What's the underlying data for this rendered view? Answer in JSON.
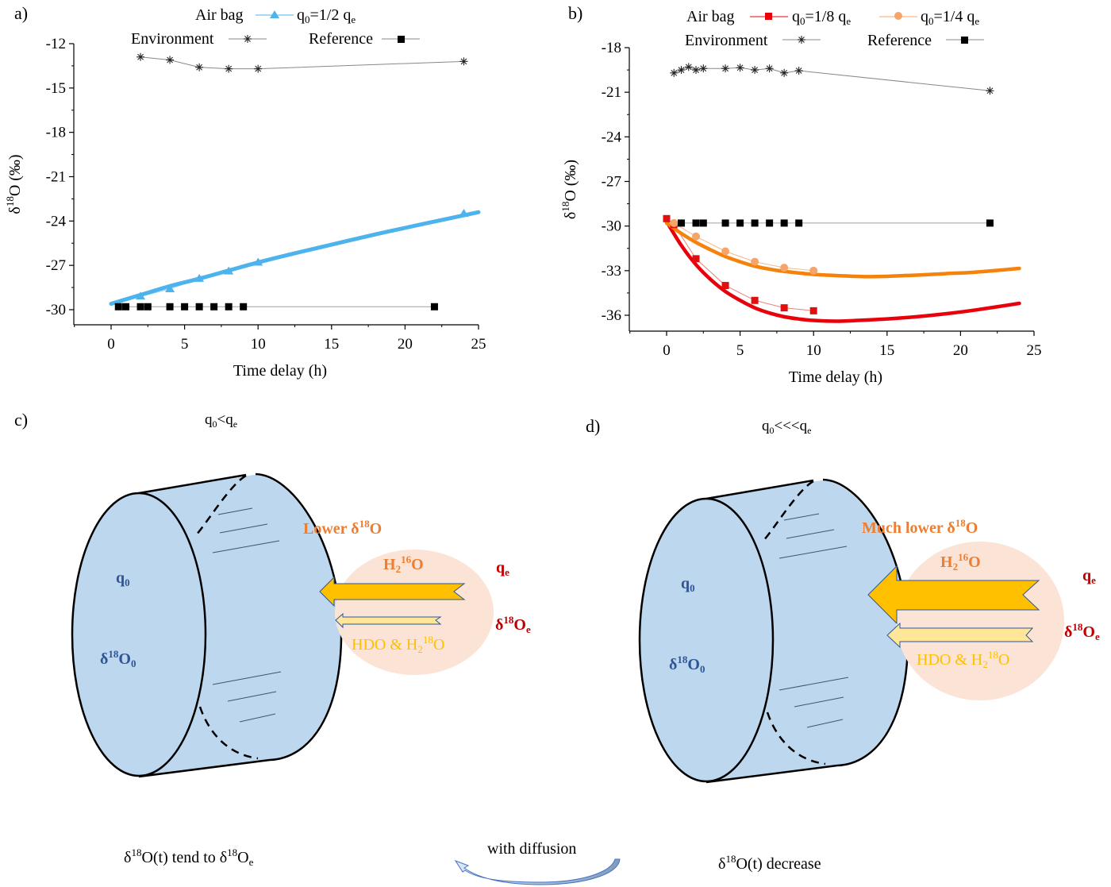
{
  "panels": {
    "a": {
      "label": "a)"
    },
    "b": {
      "label": "b)"
    },
    "c": {
      "label": "c)",
      "condition": "q0<qe",
      "inflow_label": "Lower δ18O",
      "h2o16": "H2 16O",
      "hdo": "HDO & H2 18O",
      "q0": "q0",
      "d18o0": "δ18O0",
      "qe": "qe",
      "d18oe": "δ18Oe",
      "caption": "δ18O(t) tend to δ18Oe"
    },
    "d": {
      "label": "d)",
      "condition": "q0<<<qe",
      "inflow_label": "Much lower δ18O",
      "h2o16": "H2 16O",
      "hdo": "HDO & H2 18O",
      "q0": "q0",
      "d18o0": "δ18O0",
      "qe": "qe",
      "d18oe": "δ18Oe",
      "caption": "δ18O(t)  decrease"
    },
    "transition": {
      "label": "with diffusion"
    }
  },
  "text": {
    "air_bag": "Air bag",
    "environment": "Environment",
    "reference": "Reference",
    "q_half": "q0=1/2 qe",
    "q_eighth": "q0=1/8 qe",
    "q_quarter": "q0=1/4 qe",
    "xlabel": "Time delay (h)",
    "ylabel": "δ18O (‰)"
  },
  "colors": {
    "airbag_blue": "#4db3ec",
    "red": "#e8000b",
    "orange": "#f5820a",
    "orange_light": "#f7a46a",
    "grey_line": "#a0a0a0",
    "cylinder_fill": "#bdd7ee",
    "bubble_fill": "#fbe4d5",
    "arrow_main": "#ffc000",
    "arrow_minor": "#ffe699",
    "text_blue": "#2f5597",
    "text_orange": "#ed7d31",
    "text_red": "#c00000",
    "text_gold": "#ffc000"
  },
  "chart_data": [
    {
      "type": "line",
      "panel": "a",
      "xlabel": "Time delay (h)",
      "ylabel": "δ18O (‰)",
      "xlim": [
        -2.5,
        25
      ],
      "ylim": [
        -31.2,
        -12
      ],
      "xticks": [
        0,
        5,
        10,
        15,
        20,
        25
      ],
      "yticks": [
        -12,
        -15,
        -18,
        -21,
        -24,
        -27,
        -30
      ],
      "legend": [
        "Air bag q0=1/2 qe",
        "Environment",
        "Reference"
      ],
      "legend_position": "top-center",
      "series": [
        {
          "name": "Environment",
          "marker": "asterisk",
          "x": [
            2,
            4,
            6,
            8,
            10,
            24
          ],
          "y": [
            -12.9,
            -13.1,
            -13.6,
            -13.7,
            -13.7,
            -13.2
          ]
        },
        {
          "name": "Air bag q0=1/2 qe",
          "marker": "triangle",
          "x": [
            2,
            4,
            6,
            8,
            10,
            24
          ],
          "y": [
            -29.1,
            -28.6,
            -27.9,
            -27.4,
            -26.8,
            -23.5
          ]
        },
        {
          "name": "Air bag q0=1/2 qe fit",
          "marker": "none",
          "x": [
            0,
            2,
            4,
            6,
            8,
            10,
            12,
            15,
            18,
            21,
            25
          ],
          "y": [
            -29.6,
            -29.0,
            -28.4,
            -27.9,
            -27.35,
            -26.8,
            -26.3,
            -25.6,
            -24.9,
            -24.25,
            -23.4
          ]
        },
        {
          "name": "Reference",
          "marker": "square",
          "x": [
            0.5,
            1,
            2,
            2.5,
            4,
            5,
            6,
            7,
            8,
            9,
            22
          ],
          "y": [
            -29.8,
            -29.8,
            -29.8,
            -29.8,
            -29.8,
            -29.8,
            -29.8,
            -29.8,
            -29.8,
            -29.8,
            -29.8
          ]
        }
      ]
    },
    {
      "type": "line",
      "panel": "b",
      "xlabel": "Time delay (h)",
      "ylabel": "δ18O (‰)",
      "xlim": [
        -2.5,
        25
      ],
      "ylim": [
        -37.2,
        -18
      ],
      "xticks": [
        0,
        5,
        10,
        15,
        20,
        25
      ],
      "yticks": [
        -18,
        -21,
        -24,
        -27,
        -30,
        -33,
        -36
      ],
      "legend": [
        "Air bag q0=1/8 qe",
        "q0=1/4 qe",
        "Environment",
        "Reference"
      ],
      "legend_position": "top-center",
      "series": [
        {
          "name": "Environment",
          "marker": "asterisk",
          "x": [
            0.5,
            1,
            1.5,
            2,
            2.5,
            4,
            5,
            6,
            7,
            8,
            9,
            22
          ],
          "y": [
            -19.7,
            -19.5,
            -19.3,
            -19.5,
            -19.4,
            -19.4,
            -19.35,
            -19.5,
            -19.4,
            -19.7,
            -19.55,
            -20.9
          ]
        },
        {
          "name": "Air bag q0=1/8 qe",
          "marker": "square",
          "x": [
            0,
            0.5,
            2,
            4,
            6,
            8,
            10
          ],
          "y": [
            -29.5,
            -29.9,
            -32.2,
            -34.0,
            -35.0,
            -35.5,
            -35.7
          ]
        },
        {
          "name": "Air bag q0=1/4 qe",
          "marker": "circle",
          "x": [
            0.5,
            2,
            4,
            6,
            8,
            10
          ],
          "y": [
            -29.8,
            -30.7,
            -31.7,
            -32.4,
            -32.8,
            -33.0
          ]
        },
        {
          "name": "q0=1/8 qe fit",
          "marker": "none",
          "x": [
            0,
            1,
            2,
            3,
            4,
            5,
            6,
            7,
            8,
            9,
            10,
            11.5,
            13,
            15,
            17,
            19,
            21,
            24
          ],
          "y": [
            -29.7,
            -31.3,
            -32.6,
            -33.6,
            -34.4,
            -35.0,
            -35.5,
            -35.85,
            -36.1,
            -36.25,
            -36.35,
            -36.4,
            -36.35,
            -36.25,
            -36.1,
            -35.9,
            -35.65,
            -35.2
          ]
        },
        {
          "name": "q0=1/4 qe fit",
          "marker": "none",
          "x": [
            0,
            1,
            2,
            3,
            4,
            5,
            6,
            7,
            8,
            10,
            12,
            13.5,
            15,
            17,
            19,
            21,
            24
          ],
          "y": [
            -29.8,
            -30.5,
            -31.1,
            -31.6,
            -32.05,
            -32.4,
            -32.7,
            -32.9,
            -33.05,
            -33.25,
            -33.35,
            -33.4,
            -33.38,
            -33.3,
            -33.2,
            -33.1,
            -32.85
          ]
        },
        {
          "name": "Reference",
          "marker": "square",
          "x": [
            1,
            2,
            2.5,
            4,
            5,
            6,
            7,
            8,
            9,
            22
          ],
          "y": [
            -29.8,
            -29.8,
            -29.8,
            -29.8,
            -29.8,
            -29.8,
            -29.8,
            -29.8,
            -29.8,
            -29.8
          ]
        }
      ]
    }
  ]
}
